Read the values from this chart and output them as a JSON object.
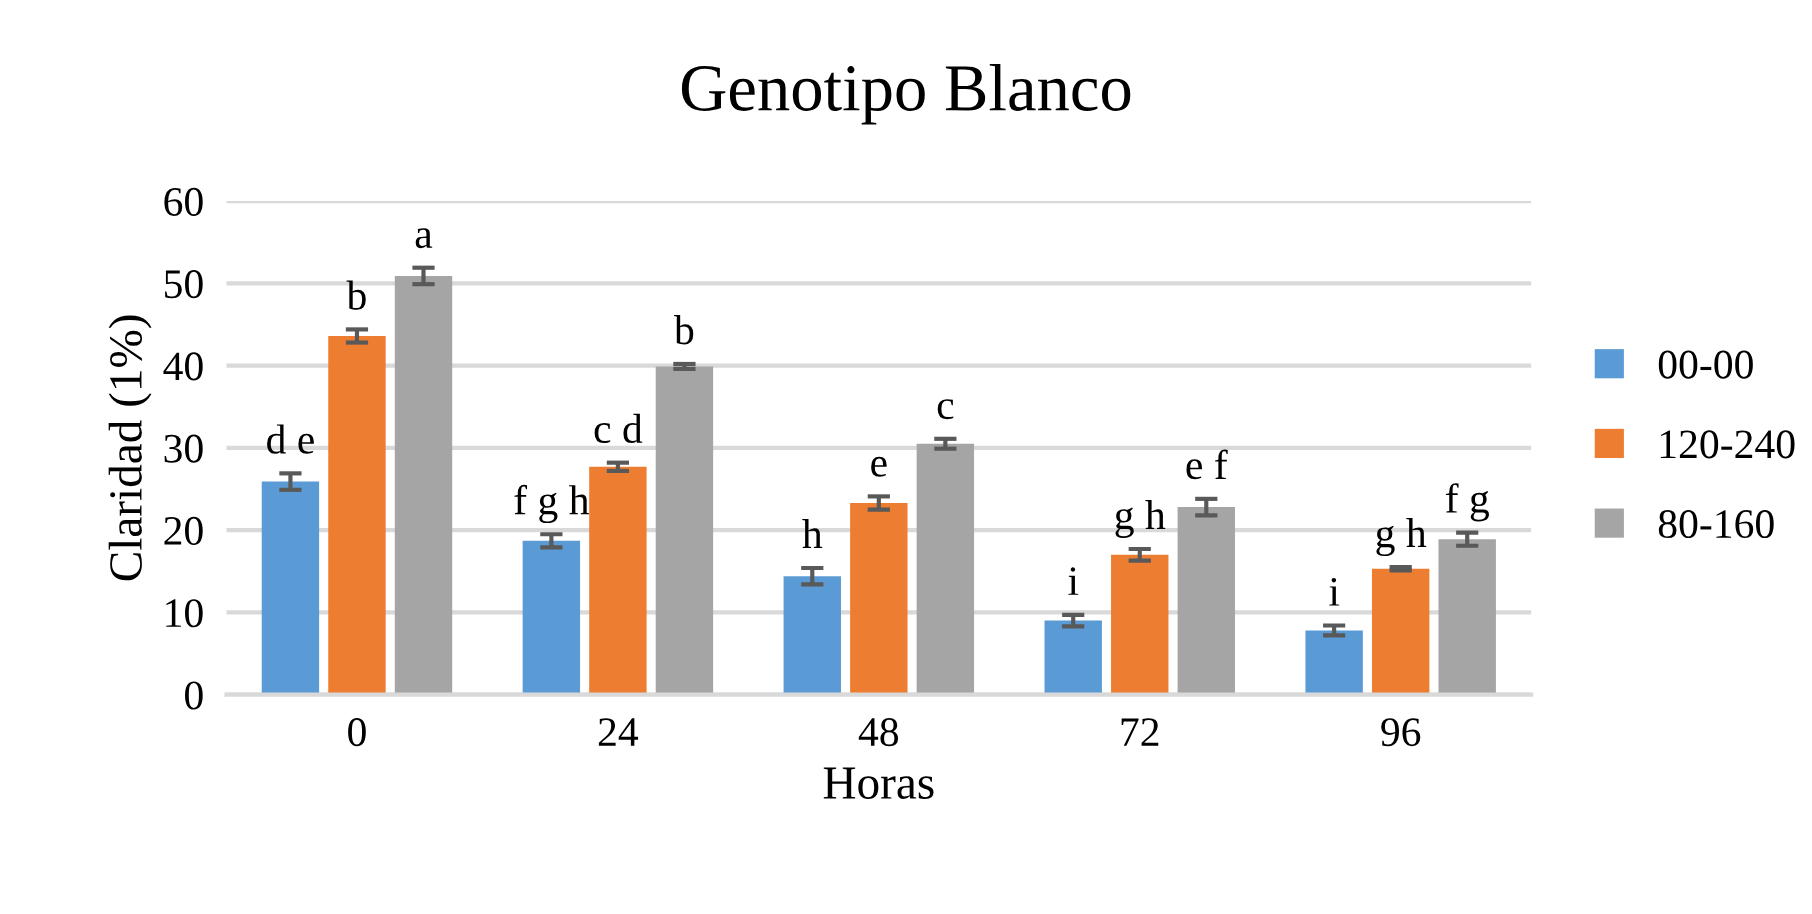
{
  "chart_data": {
    "type": "bar",
    "title": "Genotipo Blanco",
    "xlabel": "Horas",
    "ylabel": "Claridad (1%)",
    "categories": [
      "0",
      "24",
      "48",
      "72",
      "96"
    ],
    "series": [
      {
        "name": "00-00",
        "color": "#5b9bd5",
        "values": [
          25.9,
          18.7,
          14.4,
          9.0,
          7.8
        ],
        "errors": [
          1.0,
          0.8,
          1.0,
          0.7,
          0.6
        ],
        "value_labels": [
          "d e",
          "f g h",
          "h",
          "i",
          "i"
        ]
      },
      {
        "name": "120-240",
        "color": "#ed7d31",
        "values": [
          43.6,
          27.7,
          23.3,
          17.0,
          15.3
        ],
        "errors": [
          0.8,
          0.5,
          0.8,
          0.7,
          0.2
        ],
        "value_labels": [
          "b",
          "c d",
          "e",
          "g h",
          "g h"
        ]
      },
      {
        "name": "80-160",
        "color": "#a5a5a5",
        "values": [
          50.9,
          39.9,
          30.5,
          22.8,
          18.9
        ],
        "errors": [
          1.0,
          0.3,
          0.6,
          1.0,
          0.8
        ],
        "value_labels": [
          "a",
          "b",
          "c",
          "e f",
          "f g"
        ]
      }
    ],
    "ylim": [
      0,
      60
    ],
    "yticks": [
      0,
      10,
      20,
      30,
      40,
      50,
      60
    ],
    "grid": "y",
    "legend": "right"
  }
}
